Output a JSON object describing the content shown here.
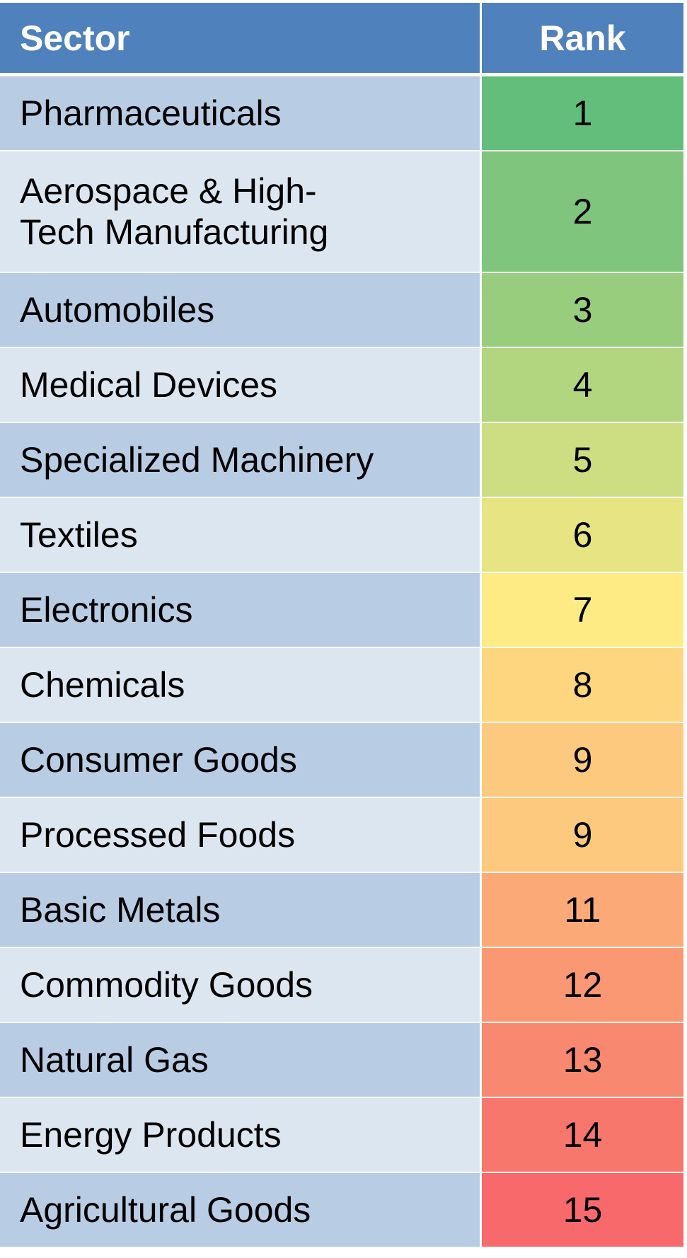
{
  "header": {
    "sector": "Sector",
    "rank": "Rank",
    "color": "#4f81bd"
  },
  "rows": [
    {
      "sector": "Pharmaceuticals",
      "rank": "1",
      "color": "#63be7b"
    },
    {
      "sector": "Aerospace & High-Tech Manufacturing",
      "rank": "2",
      "color": "#7fc57d"
    },
    {
      "sector": "Automobiles",
      "rank": "3",
      "color": "#98cd7e"
    },
    {
      "sector": "Medical Devices",
      "rank": "4",
      "color": "#b2d57f"
    },
    {
      "sector": "Specialized Machinery",
      "rank": "5",
      "color": "#cddd82"
    },
    {
      "sector": "Textiles",
      "rank": "6",
      "color": "#e6e483"
    },
    {
      "sector": "Electronics",
      "rank": "7",
      "color": "#feeb84"
    },
    {
      "sector": "Chemicals",
      "rank": "8",
      "color": "#fed680"
    },
    {
      "sector": "Consumer Goods",
      "rank": "9",
      "color": "#fdc97e"
    },
    {
      "sector": "Processed Foods",
      "rank": "9",
      "color": "#fdc97e"
    },
    {
      "sector": "Basic Metals",
      "rank": "11",
      "color": "#fbaa77"
    },
    {
      "sector": "Commodity Goods",
      "rank": "12",
      "color": "#fa9874"
    },
    {
      "sector": "Natural Gas",
      "rank": "13",
      "color": "#f98871"
    },
    {
      "sector": "Energy Products",
      "rank": "14",
      "color": "#f8776d"
    },
    {
      "sector": "Agricultural Goods",
      "rank": "15",
      "color": "#f8696b"
    }
  ]
}
